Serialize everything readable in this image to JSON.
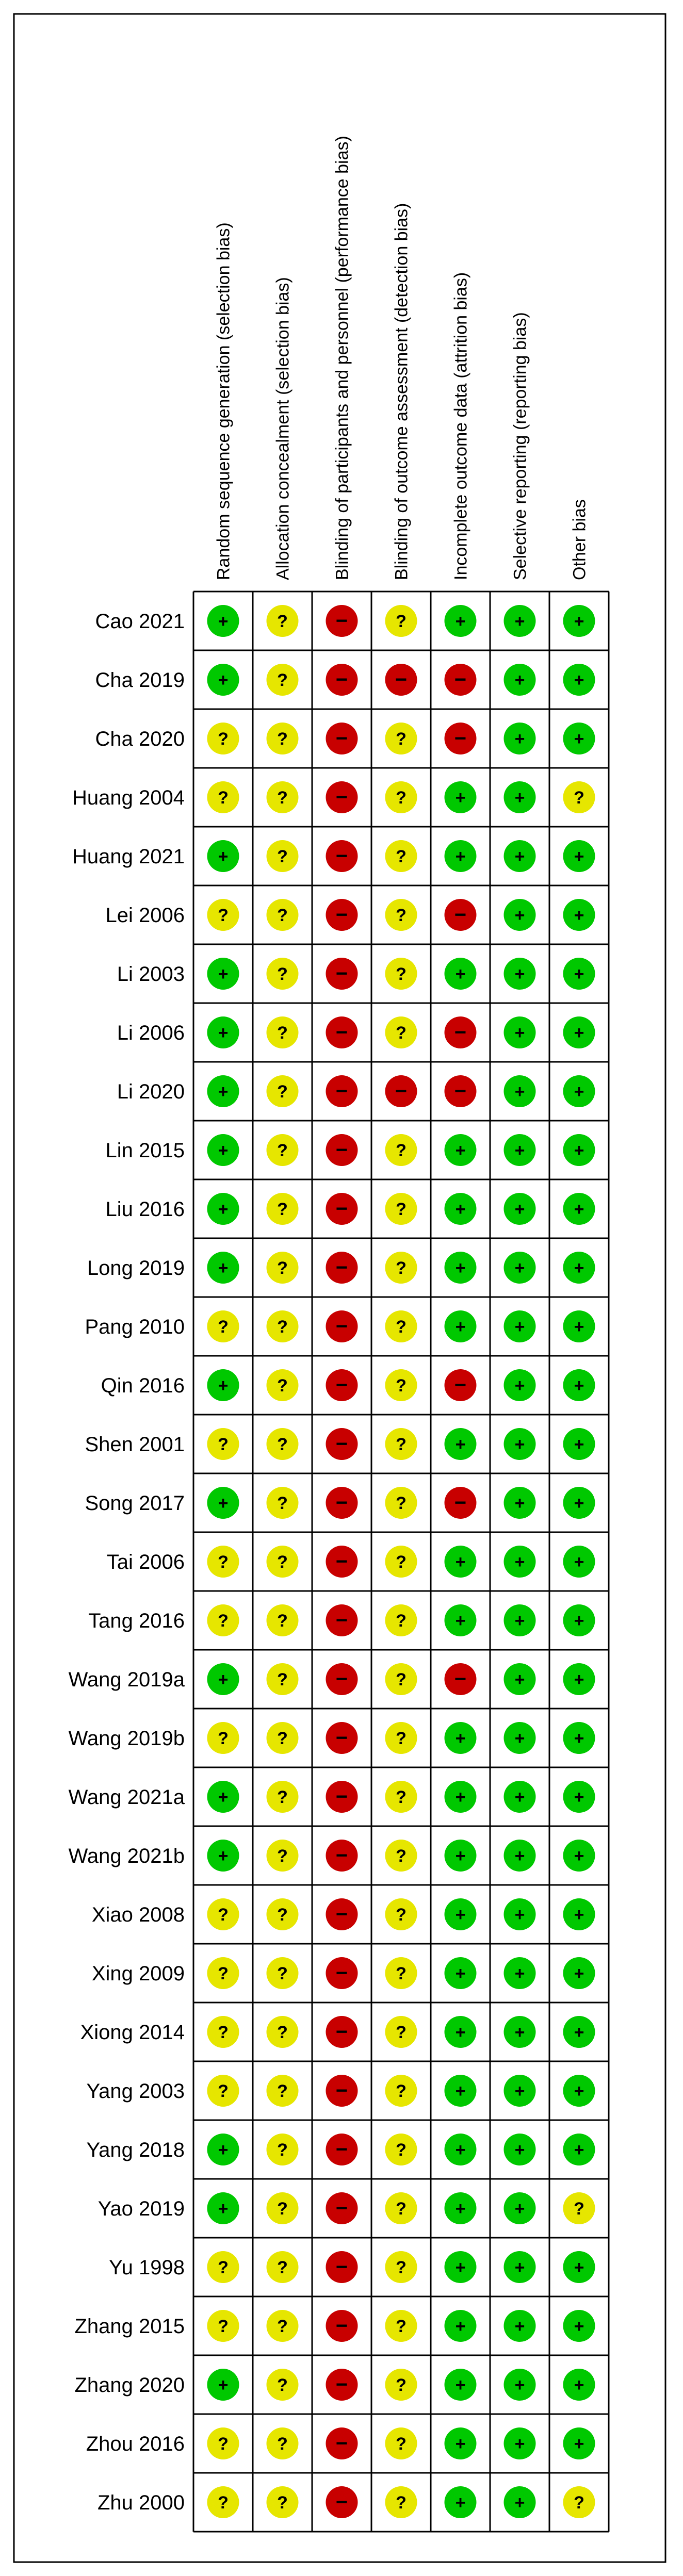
{
  "chart_data": {
    "type": "table",
    "title": "",
    "columns": [
      "Random sequence generation (selection bias)",
      "Allocation concealment (selection bias)",
      "Blinding of participants and personnel (performance bias)",
      "Blinding of outcome assessment (detection bias)",
      "Incomplete outcome data (attrition bias)",
      "Selective reporting (reporting bias)",
      "Other bias"
    ],
    "rows": [
      "Cao 2021",
      "Cha 2019",
      "Cha 2020",
      "Huang 2004",
      "Huang 2021",
      "Lei 2006",
      "Li 2003",
      "Li 2006",
      "Li 2020",
      "Lin 2015",
      "Liu 2016",
      "Long 2019",
      "Pang 2010",
      "Qin 2016",
      "Shen 2001",
      "Song 2017",
      "Tai 2006",
      "Tang 2016",
      "Wang 2019a",
      "Wang 2019b",
      "Wang 2021a",
      "Wang 2021b",
      "Xiao 2008",
      "Xing 2009",
      "Xiong 2014",
      "Yang 2003",
      "Yang 2018",
      "Yao 2019",
      "Yu 1998",
      "Zhang 2015",
      "Zhang 2020",
      "Zhou 2016",
      "Zhu 2000"
    ],
    "judgements": [
      [
        "low",
        "unclear",
        "high",
        "unclear",
        "low",
        "low",
        "low"
      ],
      [
        "low",
        "unclear",
        "high",
        "high",
        "high",
        "low",
        "low"
      ],
      [
        "unclear",
        "unclear",
        "high",
        "unclear",
        "high",
        "low",
        "low"
      ],
      [
        "unclear",
        "unclear",
        "high",
        "unclear",
        "low",
        "low",
        "unclear"
      ],
      [
        "low",
        "unclear",
        "high",
        "unclear",
        "low",
        "low",
        "low"
      ],
      [
        "unclear",
        "unclear",
        "high",
        "unclear",
        "high",
        "low",
        "low"
      ],
      [
        "low",
        "unclear",
        "high",
        "unclear",
        "low",
        "low",
        "low"
      ],
      [
        "low",
        "unclear",
        "high",
        "unclear",
        "high",
        "low",
        "low"
      ],
      [
        "low",
        "unclear",
        "high",
        "high",
        "high",
        "low",
        "low"
      ],
      [
        "low",
        "unclear",
        "high",
        "unclear",
        "low",
        "low",
        "low"
      ],
      [
        "low",
        "unclear",
        "high",
        "unclear",
        "low",
        "low",
        "low"
      ],
      [
        "low",
        "unclear",
        "high",
        "unclear",
        "low",
        "low",
        "low"
      ],
      [
        "unclear",
        "unclear",
        "high",
        "unclear",
        "low",
        "low",
        "low"
      ],
      [
        "low",
        "unclear",
        "high",
        "unclear",
        "high",
        "low",
        "low"
      ],
      [
        "unclear",
        "unclear",
        "high",
        "unclear",
        "low",
        "low",
        "low"
      ],
      [
        "low",
        "unclear",
        "high",
        "unclear",
        "high",
        "low",
        "low"
      ],
      [
        "unclear",
        "unclear",
        "high",
        "unclear",
        "low",
        "low",
        "low"
      ],
      [
        "unclear",
        "unclear",
        "high",
        "unclear",
        "low",
        "low",
        "low"
      ],
      [
        "low",
        "unclear",
        "high",
        "unclear",
        "high",
        "low",
        "low"
      ],
      [
        "unclear",
        "unclear",
        "high",
        "unclear",
        "low",
        "low",
        "low"
      ],
      [
        "low",
        "unclear",
        "high",
        "unclear",
        "low",
        "low",
        "low"
      ],
      [
        "low",
        "unclear",
        "high",
        "unclear",
        "low",
        "low",
        "low"
      ],
      [
        "unclear",
        "unclear",
        "high",
        "unclear",
        "low",
        "low",
        "low"
      ],
      [
        "unclear",
        "unclear",
        "high",
        "unclear",
        "low",
        "low",
        "low"
      ],
      [
        "unclear",
        "unclear",
        "high",
        "unclear",
        "low",
        "low",
        "low"
      ],
      [
        "unclear",
        "unclear",
        "high",
        "unclear",
        "low",
        "low",
        "low"
      ],
      [
        "low",
        "unclear",
        "high",
        "unclear",
        "low",
        "low",
        "low"
      ],
      [
        "low",
        "unclear",
        "high",
        "unclear",
        "low",
        "low",
        "unclear"
      ],
      [
        "unclear",
        "unclear",
        "high",
        "unclear",
        "low",
        "low",
        "low"
      ],
      [
        "unclear",
        "unclear",
        "high",
        "unclear",
        "low",
        "low",
        "low"
      ],
      [
        "low",
        "unclear",
        "high",
        "unclear",
        "low",
        "low",
        "low"
      ],
      [
        "unclear",
        "unclear",
        "high",
        "unclear",
        "low",
        "low",
        "low"
      ],
      [
        "unclear",
        "unclear",
        "high",
        "unclear",
        "low",
        "low",
        "unclear"
      ]
    ],
    "legend": {
      "low": {
        "symbol": "+",
        "color": "#00c800"
      },
      "unclear": {
        "symbol": "?",
        "color": "#e6e600"
      },
      "high": {
        "symbol": "−",
        "color": "#c80000"
      }
    },
    "grid": true
  }
}
